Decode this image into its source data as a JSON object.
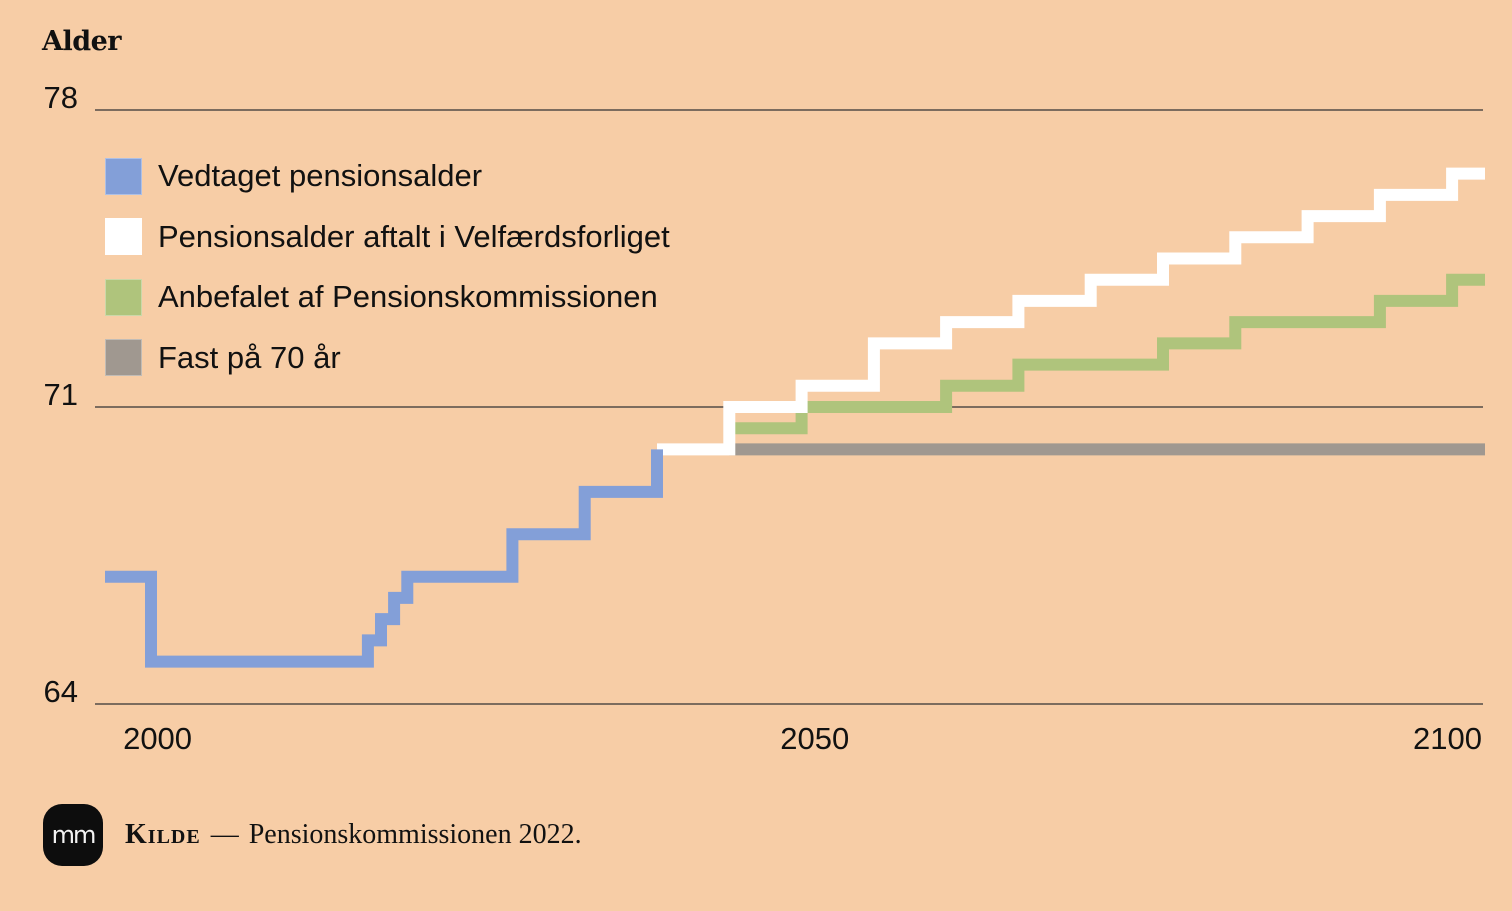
{
  "header": {
    "title": "Alder"
  },
  "chart_data": {
    "type": "line",
    "step": true,
    "xlim": [
      1996,
      2101
    ],
    "ylim": [
      64,
      78
    ],
    "y_ticks": [
      64,
      71,
      78
    ],
    "x_ticks": [
      2000,
      2050,
      2100
    ],
    "gridlines": "horizontal",
    "legend_position": "top-left",
    "series": [
      {
        "name": "Vedtaget pensionsalder",
        "color": "#839fd8",
        "points": [
          [
            1996,
            67
          ],
          [
            1999.5,
            67
          ],
          [
            1999.5,
            65
          ],
          [
            2016,
            65
          ],
          [
            2016,
            65.5
          ],
          [
            2017,
            65.5
          ],
          [
            2017,
            66
          ],
          [
            2018,
            66
          ],
          [
            2018,
            66.5
          ],
          [
            2019,
            66.5
          ],
          [
            2019,
            67
          ],
          [
            2027,
            67
          ],
          [
            2027,
            68
          ],
          [
            2032.5,
            68
          ],
          [
            2032.5,
            69
          ],
          [
            2038,
            69
          ],
          [
            2038,
            70
          ]
        ]
      },
      {
        "name": "Pensionsalder aftalt i Velfærdsforliget",
        "color": "#ffffff",
        "points": [
          [
            2038,
            70
          ],
          [
            2043.5,
            70
          ],
          [
            2043.5,
            71
          ],
          [
            2049,
            71
          ],
          [
            2049,
            71.5
          ],
          [
            2054.5,
            71.5
          ],
          [
            2054.5,
            72.5
          ],
          [
            2060,
            72.5
          ],
          [
            2060,
            73
          ],
          [
            2065.5,
            73
          ],
          [
            2065.5,
            73.5
          ],
          [
            2071,
            73.5
          ],
          [
            2071,
            74
          ],
          [
            2076.5,
            74
          ],
          [
            2076.5,
            74.5
          ],
          [
            2082,
            74.5
          ],
          [
            2082,
            75
          ],
          [
            2087.5,
            75
          ],
          [
            2087.5,
            75.5
          ],
          [
            2093,
            75.5
          ],
          [
            2093,
            76
          ],
          [
            2098.5,
            76
          ],
          [
            2098.5,
            76.5
          ],
          [
            2101,
            76.5
          ]
        ]
      },
      {
        "name": "Anbefalet af Pensionskommissionen",
        "color": "#afc47c",
        "points": [
          [
            2043.5,
            70.5
          ],
          [
            2049,
            70.5
          ],
          [
            2049,
            71
          ],
          [
            2060,
            71
          ],
          [
            2060,
            71.5
          ],
          [
            2065.5,
            71.5
          ],
          [
            2065.5,
            72
          ],
          [
            2076.5,
            72
          ],
          [
            2076.5,
            72.5
          ],
          [
            2082,
            72.5
          ],
          [
            2082,
            73
          ],
          [
            2093,
            73
          ],
          [
            2093,
            73.5
          ],
          [
            2098.5,
            73.5
          ],
          [
            2098.5,
            74
          ],
          [
            2101,
            74
          ]
        ]
      },
      {
        "name": "Fast på 70 år",
        "color": "#a09890",
        "points": [
          [
            2043.5,
            70
          ],
          [
            2101,
            70
          ]
        ]
      }
    ]
  },
  "footer": {
    "logo_text": "mm",
    "source_label": "Kilde",
    "separator": "—",
    "source_text": "Pensionskommissionen 2022."
  },
  "colors": {
    "background": "#f7cda6",
    "gridline": "#333333"
  }
}
